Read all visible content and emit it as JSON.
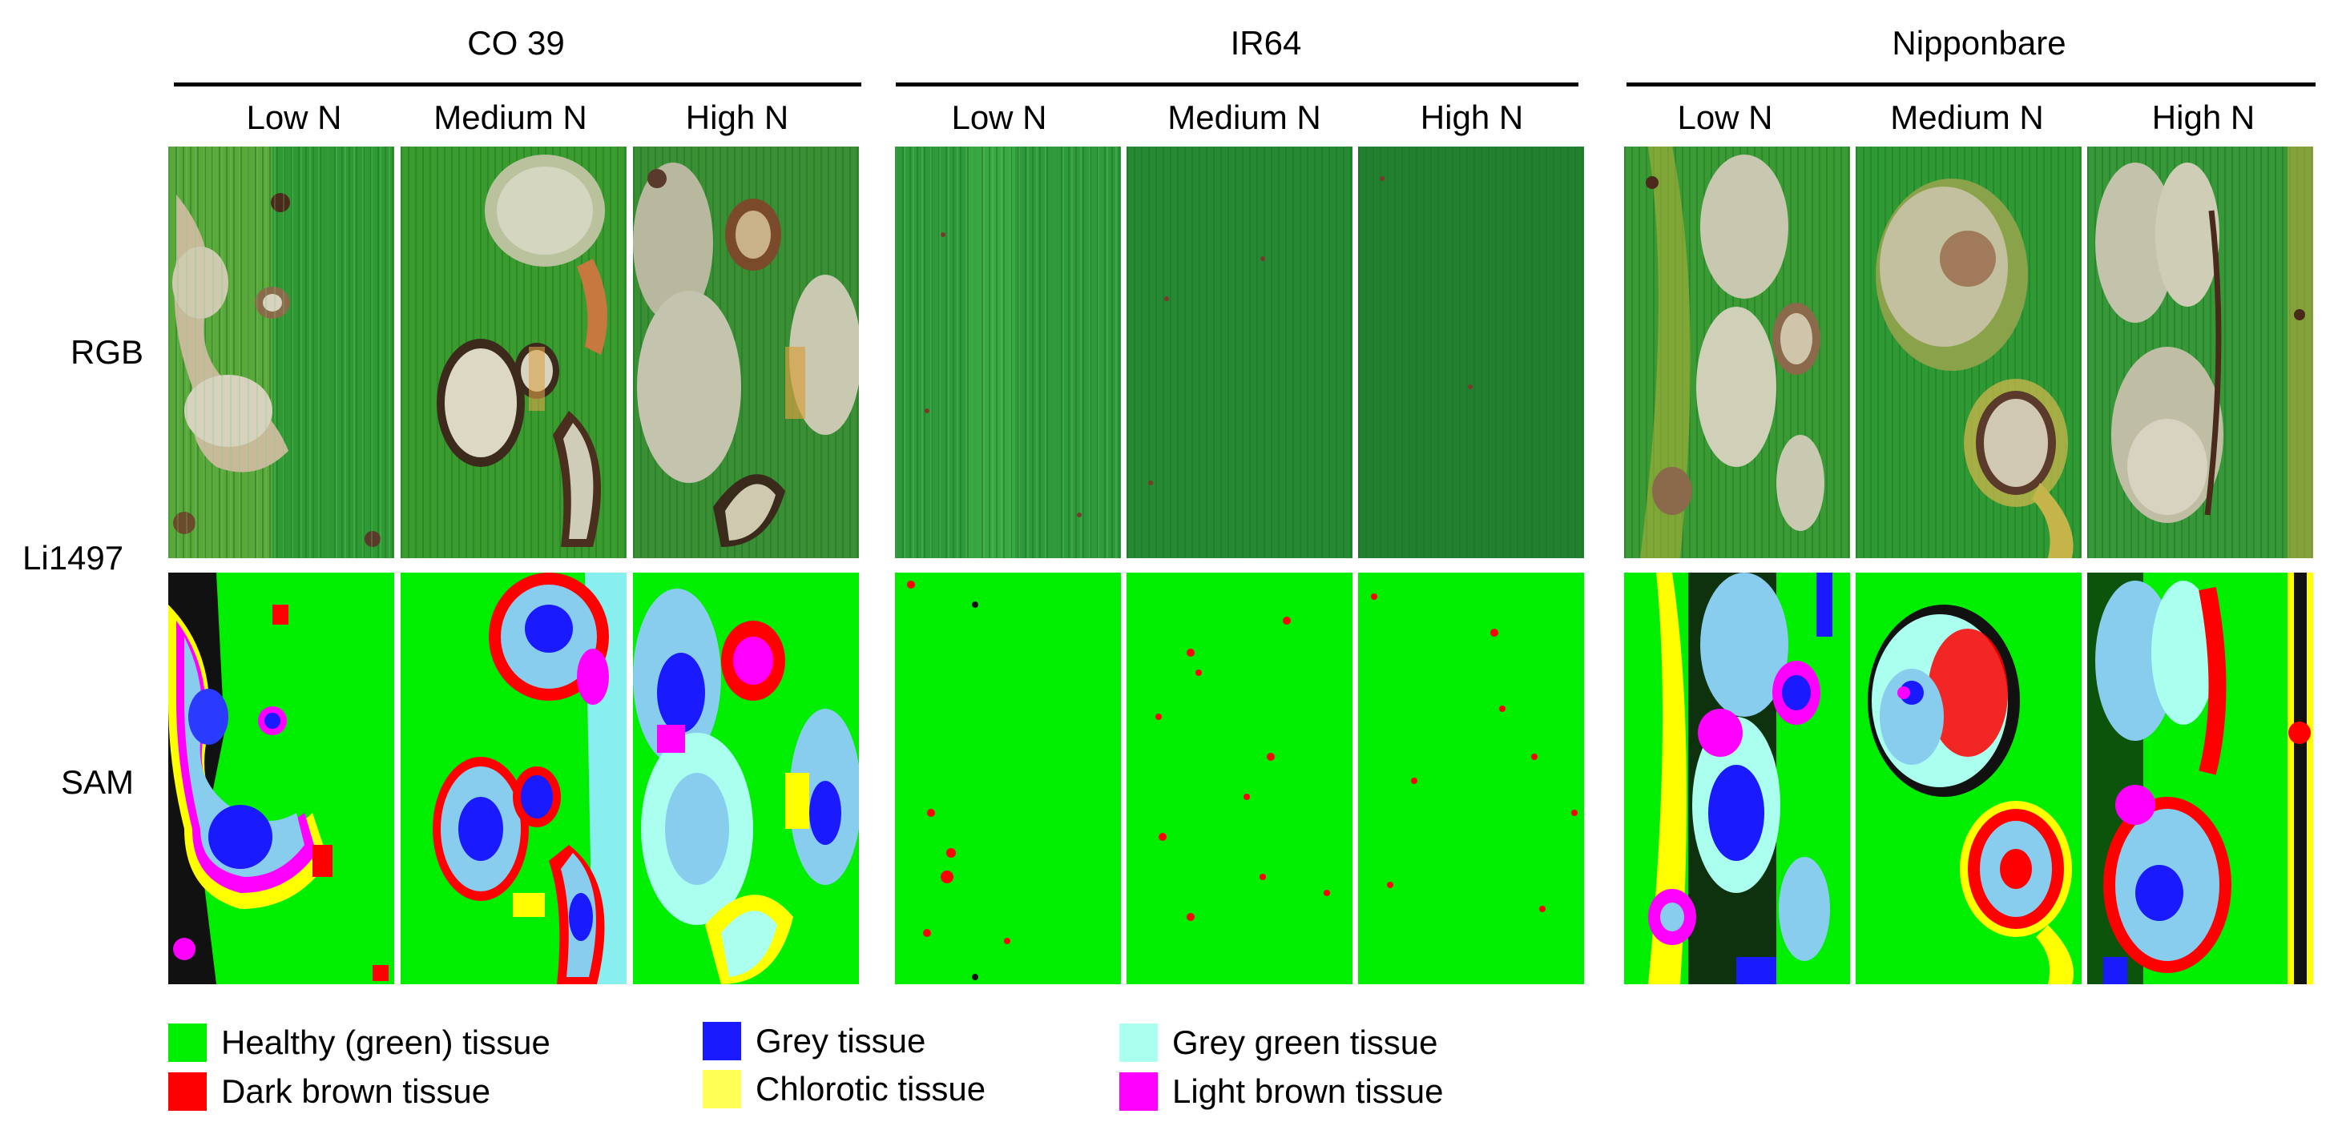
{
  "groups": [
    {
      "name": "CO 39",
      "columns": [
        "Low N",
        "Medium N",
        "High N"
      ]
    },
    {
      "name": "IR64",
      "columns": [
        "Low N",
        "Medium N",
        "High N"
      ]
    },
    {
      "name": "Nipponbare",
      "columns": [
        "Low N",
        "Medium N",
        "High N"
      ]
    }
  ],
  "rows": {
    "rgb": "RGB",
    "sam": "SAM",
    "isolate": "Li1497"
  },
  "legend": [
    {
      "label": "Healthy (green) tissue",
      "color": "#00ee00"
    },
    {
      "label": "Dark brown tissue",
      "color": "#ff0000"
    },
    {
      "label": "Grey tissue",
      "color": "#1a1aff"
    },
    {
      "label": "Chlorotic tissue",
      "color": "#ffff55"
    },
    {
      "label": "Grey green tissue",
      "color": "#aaffee"
    },
    {
      "label": "Light brown tissue",
      "color": "#ff00ff"
    }
  ]
}
